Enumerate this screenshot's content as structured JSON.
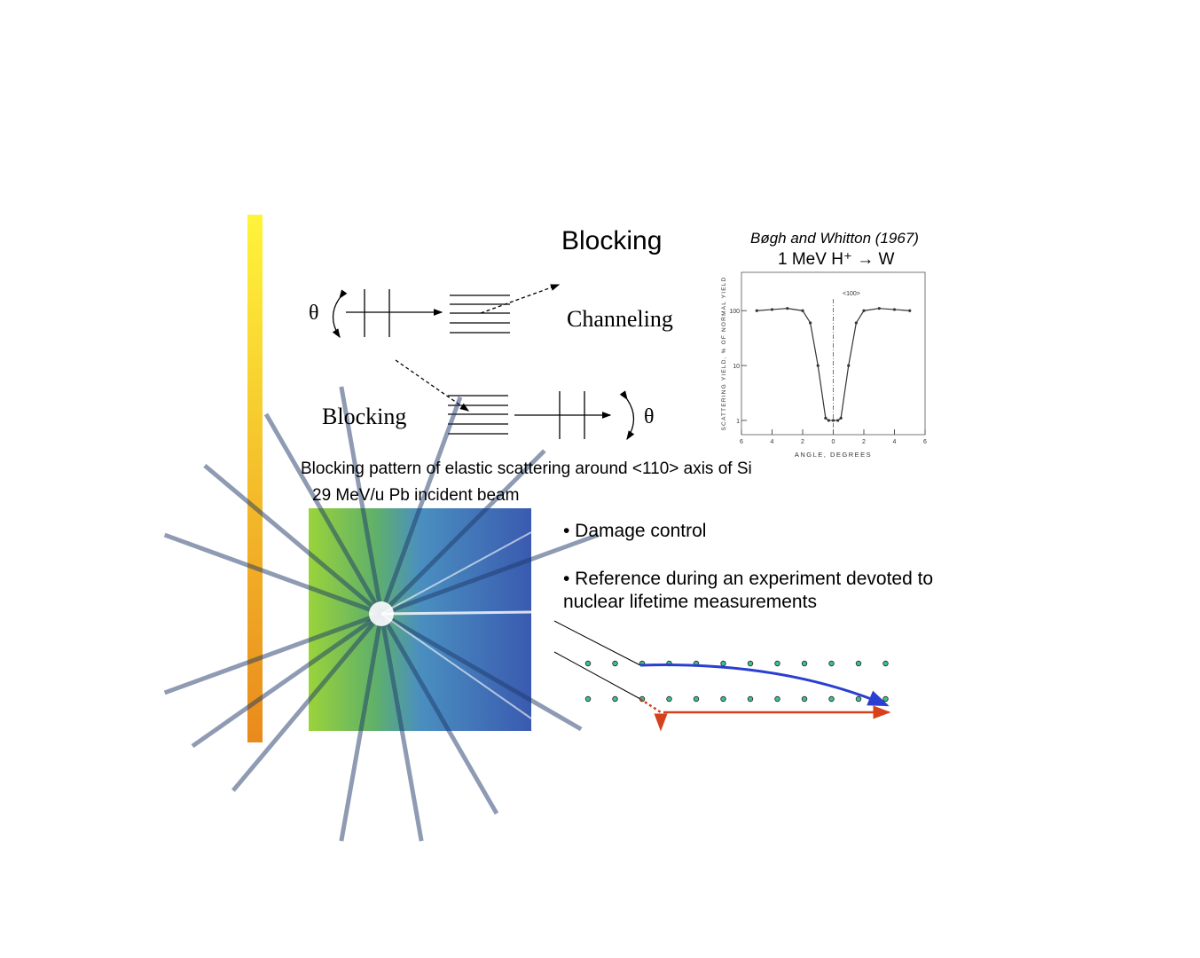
{
  "title": "Blocking",
  "diagram": {
    "channeling_label": "Channeling",
    "blocking_label": "Blocking",
    "theta_top": "θ",
    "theta_bottom": "θ"
  },
  "reference": {
    "citation": "Bøgh and Whitton (1967)",
    "reaction": "1 MeV H⁺ → W"
  },
  "chart_data": {
    "type": "line",
    "x_label": "ANGLE, DEGREES",
    "y_label": "SCATTERING YIELD, % OF NORMAL YIELD",
    "annotation": "<100>",
    "x": [
      -5,
      -4,
      -3,
      -2,
      -1.5,
      -1,
      -0.5,
      -0.3,
      0,
      0.3,
      0.5,
      1,
      1.5,
      2,
      3,
      4,
      5
    ],
    "values": [
      100,
      105,
      110,
      100,
      60,
      10,
      1.1,
      1.0,
      1.0,
      1.0,
      1.1,
      10,
      60,
      100,
      110,
      105,
      100
    ],
    "color": "#333333",
    "log_scale": true,
    "xlim": [
      -6,
      6
    ],
    "ylim": [
      0.55,
      500
    ],
    "xticks": [
      {
        "value": -6,
        "label": "6"
      },
      {
        "value": -4,
        "label": "4"
      },
      {
        "value": -2,
        "label": "2"
      },
      0,
      2,
      4,
      6
    ],
    "yticks": [
      1,
      10,
      100
    ]
  },
  "pattern": {
    "caption": "Blocking pattern of elastic scattering around <110> axis of Si",
    "beam": "29 MeV/u Pb incident beam"
  },
  "bullets": [
    "• Damage control",
    "• Reference during an experiment devoted to nuclear lifetime measurements"
  ]
}
